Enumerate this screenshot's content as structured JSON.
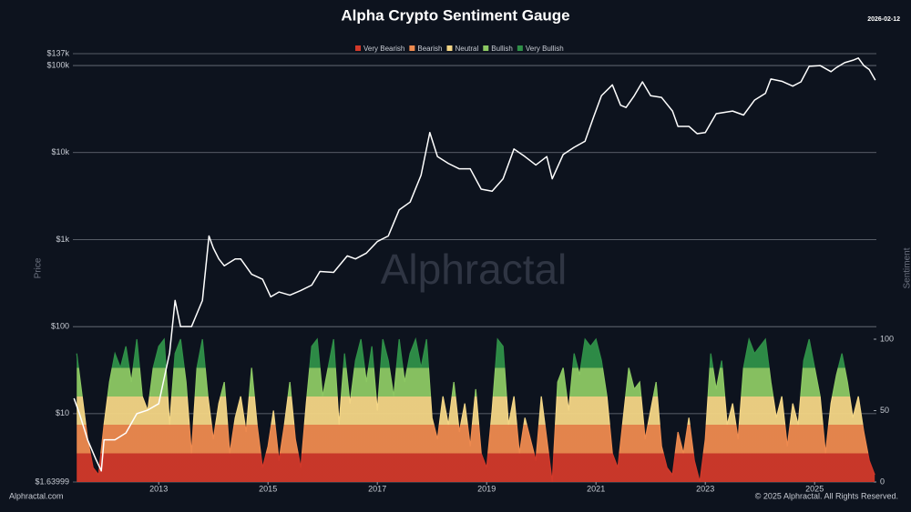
{
  "chart_data": {
    "type": "price-sentiment",
    "title": "Alpha Crypto Sentiment Gauge",
    "date": "2026-02-12",
    "watermark": "Alphractal",
    "footer_left": "Alphractal.com",
    "footer_right": "© 2025 Alphractal. All Rights Reserved.",
    "ylabel": "Price",
    "y2label": "Sentiment",
    "log_y": true,
    "grid": true,
    "legend_position": "top",
    "xlim": [
      2011.43,
      2026.13
    ],
    "xticks": [
      2013,
      2015,
      2017,
      2019,
      2021,
      2023,
      2025
    ],
    "ylim": [
      1.63999,
      137000
    ],
    "yticks": [
      {
        "value": 1.63999,
        "label": "$1.63999"
      },
      {
        "value": 10,
        "label": "$10"
      },
      {
        "value": 100,
        "label": "$100"
      },
      {
        "value": 1000,
        "label": "$1k"
      },
      {
        "value": 10000,
        "label": "$10k"
      },
      {
        "value": 100000,
        "label": "$100k"
      },
      {
        "value": 137000,
        "label": "$137k"
      }
    ],
    "y2lim": [
      0,
      100
    ],
    "y2ticks": [
      0,
      50,
      100
    ],
    "bands": [
      {
        "name": "Very Bearish",
        "color": "#d2392a",
        "range": [
          0,
          20
        ]
      },
      {
        "name": "Bearish",
        "color": "#ee8a4f",
        "range": [
          20,
          40
        ]
      },
      {
        "name": "Neutral",
        "color": "#f3d585",
        "range": [
          40,
          60
        ]
      },
      {
        "name": "Bullish",
        "color": "#8cc863",
        "range": [
          60,
          80
        ]
      },
      {
        "name": "Very Bullish",
        "color": "#2f9048",
        "range": [
          80,
          100
        ]
      }
    ],
    "price": {
      "color": "#ffffff",
      "x": [
        2011.45,
        2011.55,
        2011.7,
        2011.85,
        2011.95,
        2012.0,
        2012.2,
        2012.4,
        2012.6,
        2012.8,
        2013.0,
        2013.2,
        2013.3,
        2013.4,
        2013.6,
        2013.8,
        2013.92,
        2014.0,
        2014.1,
        2014.2,
        2014.4,
        2014.5,
        2014.7,
        2014.9,
        2015.05,
        2015.2,
        2015.4,
        2015.6,
        2015.8,
        2015.95,
        2016.2,
        2016.45,
        2016.6,
        2016.8,
        2017.0,
        2017.2,
        2017.4,
        2017.6,
        2017.8,
        2017.96,
        2018.1,
        2018.3,
        2018.5,
        2018.7,
        2018.9,
        2019.1,
        2019.3,
        2019.5,
        2019.7,
        2019.9,
        2020.1,
        2020.2,
        2020.4,
        2020.6,
        2020.8,
        2020.95,
        2021.1,
        2021.3,
        2021.45,
        2021.55,
        2021.7,
        2021.85,
        2022.0,
        2022.2,
        2022.4,
        2022.5,
        2022.7,
        2022.85,
        2023.0,
        2023.2,
        2023.5,
        2023.7,
        2023.9,
        2024.1,
        2024.2,
        2024.4,
        2024.6,
        2024.75,
        2024.9,
        2025.1,
        2025.3,
        2025.4,
        2025.55,
        2025.7,
        2025.8,
        2025.9,
        2026.0,
        2026.11
      ],
      "values": [
        15,
        10,
        5,
        3,
        2.2,
        5,
        5,
        6,
        10,
        11,
        13,
        50,
        200,
        100,
        100,
        200,
        1100,
        800,
        600,
        500,
        600,
        600,
        400,
        350,
        220,
        250,
        230,
        260,
        300,
        430,
        420,
        650,
        600,
        700,
        950,
        1100,
        2200,
        2700,
        5500,
        17000,
        9000,
        7500,
        6500,
        6500,
        3800,
        3600,
        5000,
        11000,
        9000,
        7200,
        9000,
        5000,
        9500,
        11500,
        13500,
        25000,
        45000,
        60000,
        35000,
        33000,
        45000,
        65000,
        45000,
        43000,
        30000,
        20000,
        20000,
        16500,
        17000,
        28000,
        30000,
        27000,
        40000,
        48000,
        70000,
        66000,
        58000,
        65000,
        98000,
        100000,
        85000,
        95000,
        108000,
        115000,
        122000,
        100000,
        90000,
        68000
      ]
    },
    "sentiment": {
      "axis": "y2",
      "x": [
        2011.5,
        2011.6,
        2011.7,
        2011.8,
        2011.9,
        2012.0,
        2012.1,
        2012.2,
        2012.3,
        2012.4,
        2012.5,
        2012.6,
        2012.7,
        2012.8,
        2012.9,
        2013.0,
        2013.1,
        2013.2,
        2013.3,
        2013.4,
        2013.5,
        2013.6,
        2013.7,
        2013.8,
        2013.9,
        2014.0,
        2014.1,
        2014.2,
        2014.3,
        2014.4,
        2014.5,
        2014.6,
        2014.7,
        2014.8,
        2014.9,
        2015.0,
        2015.1,
        2015.2,
        2015.3,
        2015.4,
        2015.5,
        2015.6,
        2015.7,
        2015.8,
        2015.9,
        2016.0,
        2016.1,
        2016.2,
        2016.3,
        2016.4,
        2016.5,
        2016.6,
        2016.7,
        2016.8,
        2016.9,
        2017.0,
        2017.1,
        2017.2,
        2017.3,
        2017.4,
        2017.5,
        2017.6,
        2017.7,
        2017.8,
        2017.9,
        2018.0,
        2018.1,
        2018.2,
        2018.3,
        2018.4,
        2018.5,
        2018.6,
        2018.7,
        2018.8,
        2018.9,
        2019.0,
        2019.1,
        2019.2,
        2019.3,
        2019.4,
        2019.5,
        2019.6,
        2019.7,
        2019.8,
        2019.9,
        2020.0,
        2020.1,
        2020.2,
        2020.3,
        2020.4,
        2020.5,
        2020.6,
        2020.7,
        2020.8,
        2020.9,
        2021.0,
        2021.1,
        2021.2,
        2021.3,
        2021.4,
        2021.5,
        2021.6,
        2021.7,
        2021.8,
        2021.9,
        2022.0,
        2022.1,
        2022.2,
        2022.3,
        2022.4,
        2022.5,
        2022.6,
        2022.7,
        2022.8,
        2022.9,
        2023.0,
        2023.1,
        2023.2,
        2023.3,
        2023.4,
        2023.5,
        2023.6,
        2023.7,
        2023.8,
        2023.9,
        2024.0,
        2024.1,
        2024.2,
        2024.3,
        2024.4,
        2024.5,
        2024.6,
        2024.7,
        2024.8,
        2024.9,
        2025.0,
        2025.1,
        2025.2,
        2025.3,
        2025.4,
        2025.5,
        2025.6,
        2025.7,
        2025.8,
        2025.9,
        2026.0,
        2026.1
      ],
      "values": [
        90,
        60,
        30,
        10,
        5,
        40,
        70,
        90,
        80,
        95,
        70,
        100,
        60,
        50,
        80,
        95,
        100,
        40,
        90,
        100,
        70,
        20,
        80,
        100,
        60,
        30,
        55,
        70,
        20,
        45,
        60,
        35,
        80,
        40,
        10,
        25,
        50,
        15,
        40,
        70,
        30,
        10,
        55,
        95,
        100,
        60,
        80,
        100,
        40,
        90,
        55,
        85,
        100,
        70,
        95,
        50,
        100,
        85,
        60,
        100,
        70,
        90,
        100,
        80,
        100,
        45,
        30,
        60,
        40,
        70,
        35,
        55,
        25,
        65,
        20,
        10,
        50,
        100,
        95,
        40,
        60,
        20,
        45,
        30,
        15,
        60,
        30,
        0,
        70,
        80,
        50,
        90,
        75,
        100,
        95,
        100,
        85,
        60,
        20,
        10,
        45,
        80,
        65,
        70,
        30,
        50,
        70,
        25,
        10,
        5,
        35,
        20,
        45,
        15,
        0,
        30,
        90,
        65,
        85,
        40,
        55,
        30,
        80,
        100,
        90,
        95,
        100,
        70,
        45,
        60,
        25,
        55,
        40,
        85,
        100,
        80,
        60,
        20,
        55,
        75,
        90,
        70,
        45,
        60,
        35,
        15,
        5
      ]
    }
  }
}
